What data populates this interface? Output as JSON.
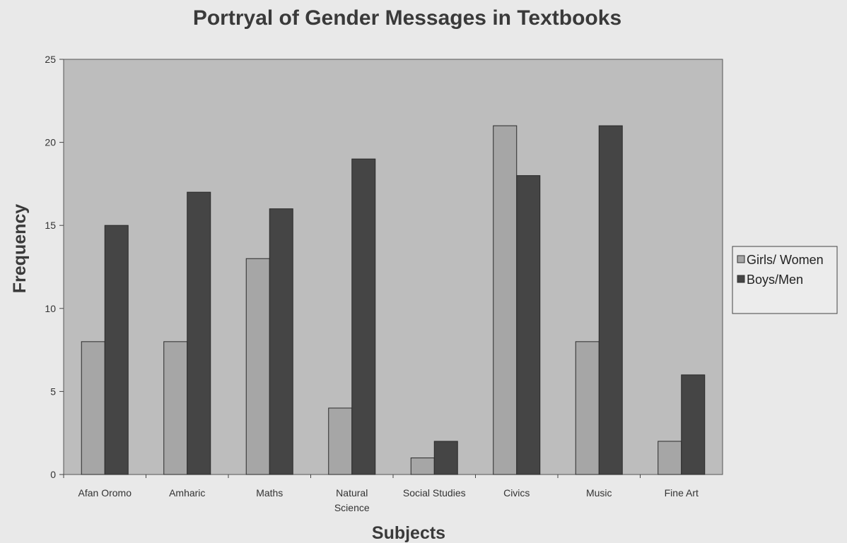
{
  "chart_data": {
    "type": "bar",
    "title": "Portryal of Gender Messages in Textbooks",
    "xlabel": "Subjects",
    "ylabel": "Frequency",
    "categories": [
      "Afan Oromo",
      "Amharic",
      "Maths",
      "Natural Science",
      "Social Studies",
      "Civics",
      "Music",
      "Fine Art"
    ],
    "category_label_lines": [
      [
        "Afan Oromo"
      ],
      [
        "Amharic"
      ],
      [
        "Maths"
      ],
      [
        "Natural",
        "Science"
      ],
      [
        "Social Studies"
      ],
      [
        "Civics"
      ],
      [
        "Music"
      ],
      [
        "Fine Art"
      ]
    ],
    "series": [
      {
        "name": "Girls/ Women",
        "values": [
          8,
          8,
          13,
          4,
          1,
          21,
          8,
          2
        ],
        "color": "#a6a6a6"
      },
      {
        "name": "Boys/Men",
        "values": [
          15,
          17,
          16,
          19,
          2,
          18,
          21,
          6
        ],
        "color": "#454545"
      }
    ],
    "ylim": [
      0,
      25
    ],
    "yticks": [
      0,
      5,
      10,
      15,
      20,
      25
    ],
    "grid": false,
    "legend": "right",
    "plot_background": "#bdbdbd"
  }
}
